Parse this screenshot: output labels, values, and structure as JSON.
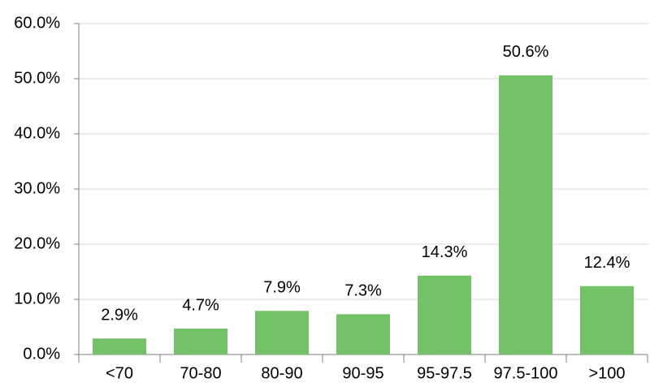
{
  "chart_data": {
    "type": "bar",
    "categories": [
      "<70",
      "70-80",
      "80-90",
      "90-95",
      "95-97.5",
      "97.5-100",
      ">100"
    ],
    "values": [
      2.9,
      4.7,
      7.9,
      7.3,
      14.3,
      50.6,
      12.4
    ],
    "value_labels": [
      "2.9%",
      "4.7%",
      "7.9%",
      "7.3%",
      "14.3%",
      "50.6%",
      "12.4%"
    ],
    "color": "#74c267",
    "ylim": [
      0,
      60
    ],
    "yticks": [
      {
        "value": 0,
        "label": "0.0%"
      },
      {
        "value": 10,
        "label": "10.0%"
      },
      {
        "value": 20,
        "label": "20.0%"
      },
      {
        "value": 30,
        "label": "30.0%"
      },
      {
        "value": 40,
        "label": "40.0%"
      },
      {
        "value": 50,
        "label": "50.0%"
      },
      {
        "value": 60,
        "label": "60.0%"
      }
    ],
    "grid": true
  }
}
